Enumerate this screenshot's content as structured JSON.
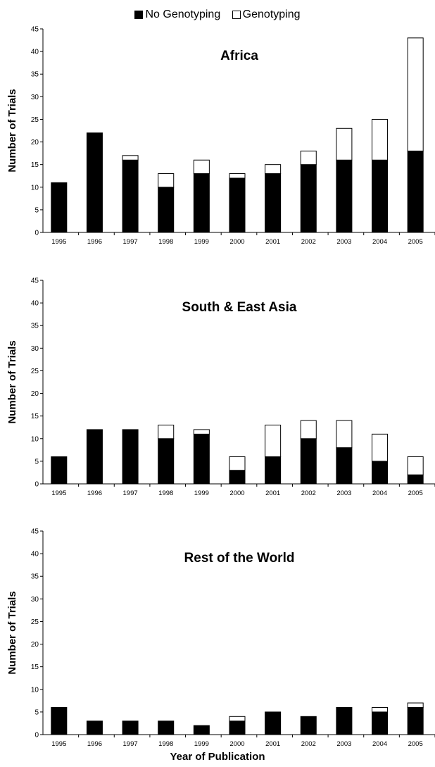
{
  "legend": [
    {
      "label": "No Genotyping",
      "color": "#000000"
    },
    {
      "label": "Genotyping",
      "color": "#ffffff"
    }
  ],
  "xlabel": "Year of Publication",
  "chart_data": [
    {
      "type": "bar",
      "stacked": true,
      "title": "Africa",
      "ylabel": "Number of Trials",
      "xlabel": "Year of Publication",
      "ylim": [
        0,
        45
      ],
      "yticks": [
        0,
        5,
        10,
        15,
        20,
        25,
        30,
        35,
        40,
        45
      ],
      "grid": false,
      "categories": [
        "1995",
        "1996",
        "1997",
        "1998",
        "1999",
        "2000",
        "2001",
        "2002",
        "2003",
        "2004",
        "2005"
      ],
      "series": [
        {
          "name": "No Genotyping",
          "color": "#000000",
          "values": [
            11,
            22,
            16,
            10,
            13,
            12,
            13,
            15,
            16,
            16,
            18
          ]
        },
        {
          "name": "Genotyping",
          "color": "#ffffff",
          "values": [
            0,
            0,
            1,
            3,
            3,
            1,
            2,
            3,
            7,
            9,
            25
          ]
        }
      ]
    },
    {
      "type": "bar",
      "stacked": true,
      "title": "South & East Asia",
      "ylabel": "Number of Trials",
      "xlabel": "Year of Publication",
      "ylim": [
        0,
        45
      ],
      "yticks": [
        0,
        5,
        10,
        15,
        20,
        25,
        30,
        35,
        40,
        45
      ],
      "grid": false,
      "categories": [
        "1995",
        "1996",
        "1997",
        "1998",
        "1999",
        "2000",
        "2001",
        "2002",
        "2003",
        "2004",
        "2005"
      ],
      "series": [
        {
          "name": "No Genotyping",
          "color": "#000000",
          "values": [
            6,
            12,
            12,
            10,
            11,
            3,
            6,
            10,
            8,
            5,
            2
          ]
        },
        {
          "name": "Genotyping",
          "color": "#ffffff",
          "values": [
            0,
            0,
            0,
            3,
            1,
            3,
            7,
            4,
            6,
            6,
            4
          ]
        }
      ]
    },
    {
      "type": "bar",
      "stacked": true,
      "title": "Rest of the World",
      "ylabel": "Number of Trials",
      "xlabel": "Year of Publication",
      "ylim": [
        0,
        45
      ],
      "yticks": [
        0,
        5,
        10,
        15,
        20,
        25,
        30,
        35,
        40,
        45
      ],
      "grid": false,
      "categories": [
        "1995",
        "1996",
        "1997",
        "1998",
        "1999",
        "2000",
        "2001",
        "2002",
        "2003",
        "2004",
        "2005"
      ],
      "series": [
        {
          "name": "No Genotyping",
          "color": "#000000",
          "values": [
            6,
            3,
            3,
            3,
            2,
            3,
            5,
            4,
            6,
            5,
            6
          ]
        },
        {
          "name": "Genotyping",
          "color": "#ffffff",
          "values": [
            0,
            0,
            0,
            0,
            0,
            1,
            0,
            0,
            0,
            1,
            1
          ]
        }
      ]
    }
  ]
}
